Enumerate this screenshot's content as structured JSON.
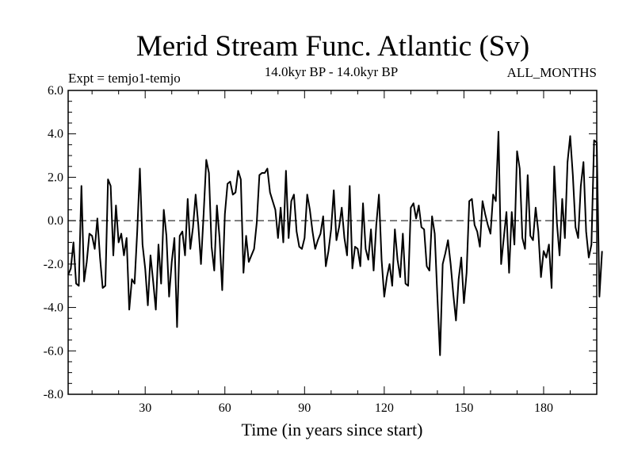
{
  "chart_data": {
    "type": "line",
    "title": "Merid Stream Func. Atlantic (Sv)",
    "subtitle_left": "Expt = temjo1-temjo",
    "subtitle_center": "14.0kyr BP - 14.0kyr BP",
    "subtitle_right": "ALL_MONTHS",
    "xlabel": "Time (in years since start)",
    "ylabel": "",
    "xlim": [
      1,
      200
    ],
    "ylim": [
      -8,
      6
    ],
    "x_ticks": [
      30,
      60,
      90,
      120,
      150,
      180
    ],
    "x_tick_labels": [
      "30",
      "60",
      "90",
      "120",
      "150",
      "180"
    ],
    "y_ticks": [
      -8,
      -6,
      -4,
      -2,
      0,
      2,
      4,
      6
    ],
    "y_tick_labels": [
      "-8.0",
      "-6.0",
      "-4.0",
      "-2.0",
      "0.0",
      "2.0",
      "4.0",
      "6.0"
    ],
    "reference_line": 0,
    "series": [
      {
        "name": "Merid Stream Func. Atlantic",
        "x_start": 1,
        "x_step": 1,
        "values": [
          -2.5,
          -2.2,
          -1.0,
          -2.9,
          -3.0,
          1.6,
          -2.8,
          -1.9,
          -0.6,
          -0.7,
          -1.3,
          0.1,
          -1.7,
          -3.1,
          -3.0,
          1.9,
          1.6,
          -1.6,
          0.7,
          -1.0,
          -0.6,
          -1.6,
          -0.8,
          -4.1,
          -2.7,
          -2.9,
          -0.5,
          2.4,
          -1.1,
          -2.2,
          -3.9,
          -1.6,
          -2.8,
          -4.1,
          -1.1,
          -2.9,
          0.5,
          -0.7,
          -3.5,
          -1.9,
          -0.8,
          -4.9,
          -0.7,
          -0.5,
          -1.6,
          1.0,
          -1.3,
          -0.3,
          1.2,
          -0.2,
          -2.0,
          0.3,
          2.8,
          2.2,
          -1.2,
          -2.3,
          0.7,
          -0.8,
          -3.2,
          0.3,
          1.7,
          1.8,
          1.2,
          1.3,
          2.3,
          1.9,
          -2.4,
          -0.7,
          -1.9,
          -1.6,
          -1.3,
          -0.1,
          2.1,
          2.2,
          2.2,
          2.4,
          1.3,
          0.9,
          0.5,
          -0.8,
          0.6,
          -1.0,
          2.3,
          -0.8,
          0.9,
          1.2,
          -0.5,
          -1.2,
          -1.3,
          -0.8,
          1.2,
          0.5,
          -0.5,
          -1.3,
          -0.9,
          -0.6,
          0.2,
          -2.1,
          -1.4,
          -0.4,
          1.4,
          -0.9,
          -0.3,
          0.6,
          -0.8,
          -1.6,
          1.6,
          -2.2,
          -1.2,
          -1.3,
          -2.1,
          0.8,
          -1.3,
          -1.8,
          -0.4,
          -2.3,
          -0.2,
          1.2,
          -1.8,
          -3.5,
          -2.6,
          -2.0,
          -3.0,
          -0.4,
          -1.8,
          -2.6,
          -0.6,
          -2.9,
          -3.0,
          0.6,
          0.8,
          0.1,
          0.7,
          -0.3,
          -0.4,
          -2.1,
          -2.3,
          0.2,
          -0.6,
          -3.5,
          -6.2,
          -2.0,
          -1.5,
          -0.9,
          -2.0,
          -3.4,
          -4.6,
          -2.7,
          -1.7,
          -3.8,
          -2.4,
          0.9,
          1.0,
          -0.2,
          -0.5,
          -1.2,
          0.9,
          0.3,
          -0.2,
          -0.6,
          1.2,
          0.9,
          4.1,
          -2.0,
          -0.8,
          0.4,
          -2.4,
          0.4,
          -1.1,
          3.2,
          2.4,
          -0.8,
          -1.3,
          2.1,
          -0.7,
          -0.9,
          0.6,
          -0.5,
          -2.6,
          -1.4,
          -1.7,
          -1.1,
          -3.1,
          2.5,
          -0.1,
          -1.6,
          1.0,
          -0.8,
          2.7,
          3.9,
          2.1,
          -0.3,
          -0.8,
          1.6,
          2.7,
          -0.5,
          -1.7,
          -1.1,
          3.7,
          3.6,
          -3.5,
          -1.4
        ]
      }
    ]
  }
}
